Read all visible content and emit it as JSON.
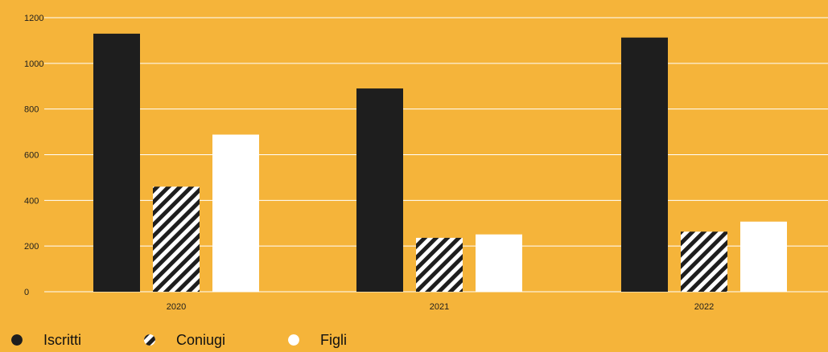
{
  "colors": {
    "background": "#F5B43A",
    "iscritti": "#1E1E1E",
    "coniugi_stripe": "#1E1E1E",
    "coniugi_bg": "#FFFFFF",
    "figli": "#FFFFFF",
    "grid": "#FFFFFF"
  },
  "legend": {
    "items": [
      {
        "label": "Iscritti",
        "icon": "solid-dark-circle-icon"
      },
      {
        "label": "Coniugi",
        "icon": "striped-circle-icon"
      },
      {
        "label": "Figli",
        "icon": "white-circle-icon"
      }
    ]
  },
  "chart_data": {
    "type": "bar",
    "categories": [
      "2020",
      "2021",
      "2022"
    ],
    "series": [
      {
        "name": "Iscritti",
        "values": [
          1130,
          890,
          1113
        ]
      },
      {
        "name": "Coniugi",
        "values": [
          460,
          236,
          263
        ]
      },
      {
        "name": "Figli",
        "values": [
          688,
          251,
          307
        ]
      }
    ],
    "title": "",
    "xlabel": "",
    "ylabel": "",
    "ylim": [
      0,
      1200
    ],
    "yticks": [
      0,
      200,
      400,
      600,
      800,
      1000,
      1200
    ],
    "grid": true,
    "legend_position": "bottom-left"
  }
}
